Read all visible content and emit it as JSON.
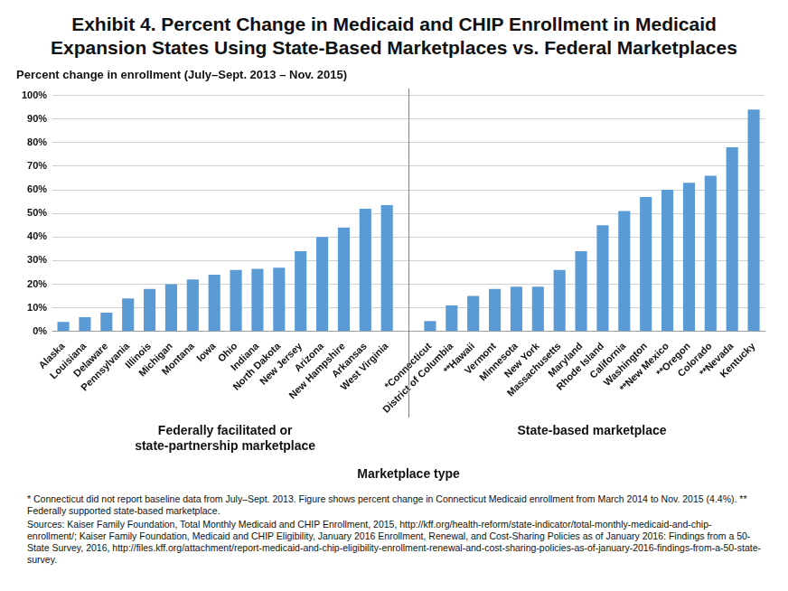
{
  "chart_data": {
    "type": "bar",
    "title": "Exhibit 4. Percent Change in Medicaid and CHIP Enrollment in Medicaid Expansion States Using State-Based Marketplaces vs. Federal Marketplaces",
    "ylabel": "Percent change in enrollment (July–Sept. 2013 – Nov. 2015)",
    "xlabel": "Marketplace type",
    "group_labels": [
      [
        "Federally facilitated or",
        "state-partnership marketplace"
      ],
      [
        "State-based marketplace"
      ]
    ],
    "categories": [
      "Alaska",
      "Louisiana",
      "Delaware",
      "Pennsylvania",
      "Illinois",
      "Michigan",
      "Montana",
      "Iowa",
      "Ohio",
      "Indiana",
      "North Dakota",
      "New Jersey",
      "Arizona",
      "New Hampshire",
      "Arkansas",
      "West Virginia",
      null,
      "*Connecticut",
      "District of Columbia",
      "**Hawaii",
      "Vermont",
      "Minnesota",
      "New York",
      "Massachusetts",
      "Maryland",
      "Rhode Island",
      "California",
      "Washington",
      "**New Mexico",
      "**Oregon",
      "Colorado",
      "**Nevada",
      "Kentucky"
    ],
    "values": [
      4,
      6,
      8,
      14,
      18,
      20,
      22,
      24,
      26,
      26.5,
      27,
      34,
      40,
      44,
      52,
      53.5,
      null,
      4.4,
      11,
      15,
      18,
      19,
      19,
      26,
      34,
      45,
      51,
      57,
      60,
      63,
      66,
      78,
      94
    ],
    "color": "#5b9bd5",
    "ylim": [
      0,
      100
    ],
    "yticks": [
      {
        "value": 0,
        "label": "0%"
      },
      {
        "value": 10,
        "label": "10%"
      },
      {
        "value": 20,
        "label": "20%"
      },
      {
        "value": 30,
        "label": "30%"
      },
      {
        "value": 40,
        "label": "40%"
      },
      {
        "value": 50,
        "label": "50%"
      },
      {
        "value": 60,
        "label": "60%"
      },
      {
        "value": 70,
        "label": "70%"
      },
      {
        "value": 80,
        "label": "80%"
      },
      {
        "value": 90,
        "label": "90%"
      },
      {
        "value": 100,
        "label": "100%"
      }
    ],
    "grid": true,
    "notes": [
      "* Connecticut did not report baseline data from July–Sept. 2013. Figure shows percent change in Connecticut Medicaid enrollment from March 2014 to Nov. 2015 (4.4%). ** Federally supported state-based marketplace.",
      "Sources: Kaiser Family Foundation, Total Monthly Medicaid and CHIP Enrollment, 2015, http://kff.org/health-reform/state-indicator/total-monthly-medicaid-and-chip-enrollment/; Kaiser Family Foundation, Medicaid and CHIP Eligibility, January 2016 Enrollment, Renewal, and Cost-Sharing Policies as of January 2016: Findings from a 50-State Survey, 2016, http://files.kff.org/attachment/report-medicaid-and-chip-eligibility-enrollment-renewal-and-cost-sharing-policies-as-of-january-2016-findings-from-a-50-state-survey."
    ]
  }
}
